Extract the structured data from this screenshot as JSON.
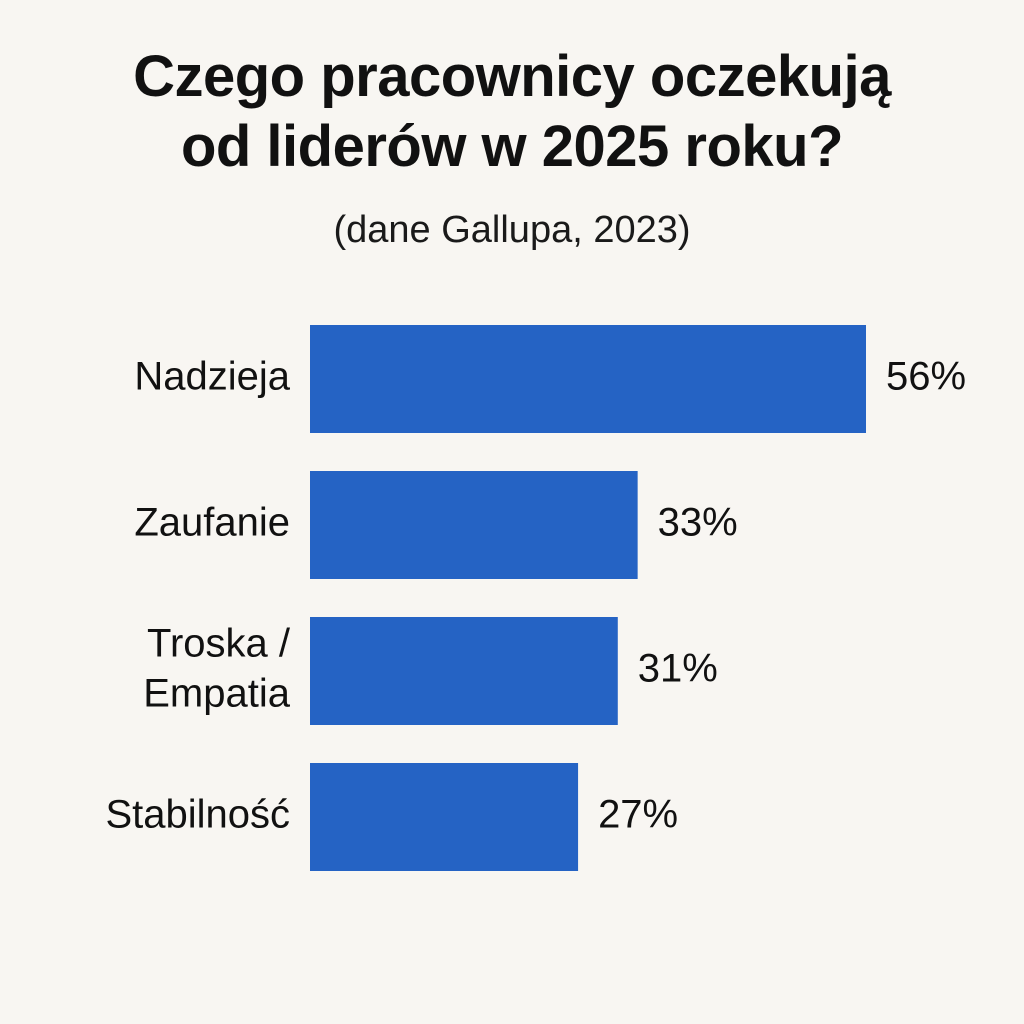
{
  "chart_data": {
    "type": "bar",
    "orientation": "horizontal",
    "title_lines": [
      "Czego pracownicy oczekują",
      "od liderów w 2025 roku?"
    ],
    "subtitle": "(dane Gallupa, 2023)",
    "categories": [
      [
        "Nadzieja"
      ],
      [
        "Zaufanie"
      ],
      [
        "Troska /",
        "Empatia"
      ],
      [
        "Stabilność"
      ]
    ],
    "values": [
      56,
      33,
      31,
      27
    ],
    "value_labels": [
      "56%",
      "33%",
      "31%",
      "27%"
    ],
    "bar_color": "#2563c4",
    "grid": false,
    "legend": "none"
  }
}
